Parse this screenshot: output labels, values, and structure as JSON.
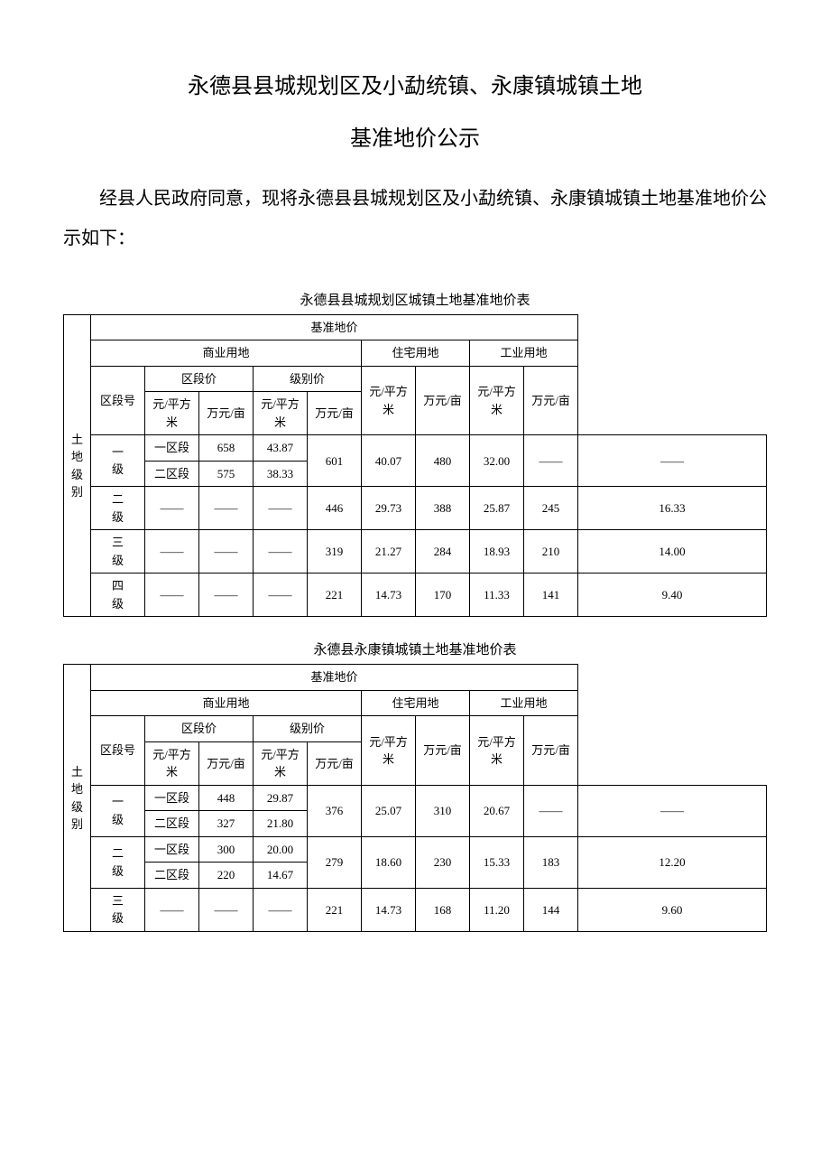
{
  "document": {
    "title_line1": "永德县县城规划区及小勐统镇、永康镇城镇土地",
    "title_line2": "基准地价公示",
    "intro": "经县人民政府同意，现将永德县县城规划区及小勐统镇、永康镇城镇土地基准地价公示如下："
  },
  "labels": {
    "land_level": "土地级别",
    "benchmark_price": "基准地价",
    "commercial": "商业用地",
    "residential": "住宅用地",
    "industrial": "工业用地",
    "segment_price": "区段价",
    "level_price": "级别价",
    "segment_no": "区段号",
    "yuan_sqm": "元/平方米",
    "wanyuan_mu": "万元/亩",
    "dash": "——"
  },
  "table1": {
    "caption": "永德县县城规划区城镇土地基准地价表",
    "rows": [
      {
        "level": "一级",
        "segs": [
          {
            "seg": "一区段",
            "sp_sqm": "658",
            "sp_mu": "43.87"
          },
          {
            "seg": "二区段",
            "sp_sqm": "575",
            "sp_mu": "38.33"
          }
        ],
        "lp_sqm": "601",
        "lp_mu": "40.07",
        "res_sqm": "480",
        "res_mu": "32.00",
        "ind_sqm": "——",
        "ind_mu": "——"
      },
      {
        "level": "二级",
        "segs": [
          {
            "seg": "——",
            "sp_sqm": "——",
            "sp_mu": "——"
          }
        ],
        "lp_sqm": "446",
        "lp_mu": "29.73",
        "res_sqm": "388",
        "res_mu": "25.87",
        "ind_sqm": "245",
        "ind_mu": "16.33"
      },
      {
        "level": "三级",
        "segs": [
          {
            "seg": "——",
            "sp_sqm": "——",
            "sp_mu": "——"
          }
        ],
        "lp_sqm": "319",
        "lp_mu": "21.27",
        "res_sqm": "284",
        "res_mu": "18.93",
        "ind_sqm": "210",
        "ind_mu": "14.00"
      },
      {
        "level": "四级",
        "segs": [
          {
            "seg": "——",
            "sp_sqm": "——",
            "sp_mu": "——"
          }
        ],
        "lp_sqm": "221",
        "lp_mu": "14.73",
        "res_sqm": "170",
        "res_mu": "11.33",
        "ind_sqm": "141",
        "ind_mu": "9.40"
      }
    ]
  },
  "table2": {
    "caption": "永德县永康镇城镇土地基准地价表",
    "rows": [
      {
        "level": "一级",
        "segs": [
          {
            "seg": "一区段",
            "sp_sqm": "448",
            "sp_mu": "29.87"
          },
          {
            "seg": "二区段",
            "sp_sqm": "327",
            "sp_mu": "21.80"
          }
        ],
        "lp_sqm": "376",
        "lp_mu": "25.07",
        "res_sqm": "310",
        "res_mu": "20.67",
        "ind_sqm": "——",
        "ind_mu": "——"
      },
      {
        "level": "二级",
        "segs": [
          {
            "seg": "一区段",
            "sp_sqm": "300",
            "sp_mu": "20.00"
          },
          {
            "seg": "二区段",
            "sp_sqm": "220",
            "sp_mu": "14.67"
          }
        ],
        "lp_sqm": "279",
        "lp_mu": "18.60",
        "res_sqm": "230",
        "res_mu": "15.33",
        "ind_sqm": "183",
        "ind_mu": "12.20"
      },
      {
        "level": "三级",
        "segs": [
          {
            "seg": "——",
            "sp_sqm": "——",
            "sp_mu": "——"
          }
        ],
        "lp_sqm": "221",
        "lp_mu": "14.73",
        "res_sqm": "168",
        "res_mu": "11.20",
        "ind_sqm": "144",
        "ind_mu": "9.60"
      }
    ]
  },
  "styling": {
    "page_background": "#ffffff",
    "text_color": "#000000",
    "border_color": "#000000",
    "title_fontsize": 24,
    "body_fontsize": 20,
    "table_fontsize": 13,
    "caption_fontsize": 15
  }
}
